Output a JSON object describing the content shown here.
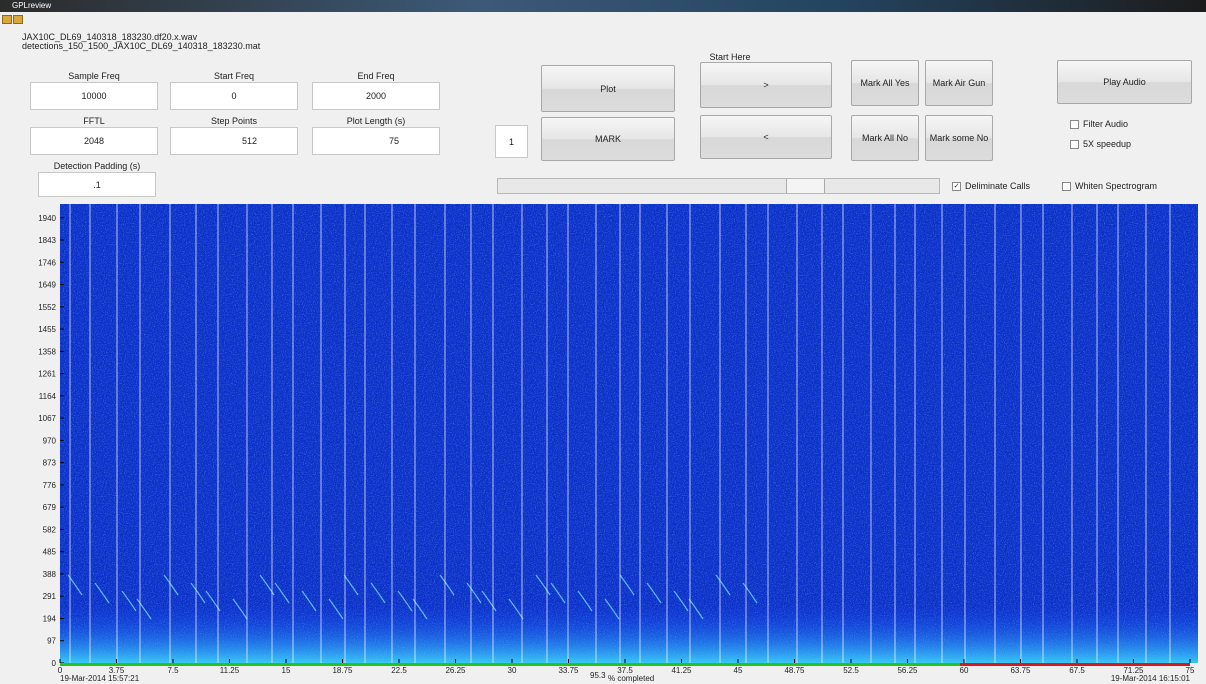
{
  "window": {
    "title": "GPLreview"
  },
  "files": [
    "JAX10C_DL69_140318_183230.df20.x.wav",
    "detections_150_1500_JAX10C_DL69_140318_183230.mat"
  ],
  "fields": [
    {
      "label": "Sample Freq",
      "value": "10000"
    },
    {
      "label": "Start Freq",
      "value": "0"
    },
    {
      "label": "End Freq",
      "value": "2000"
    },
    {
      "label": "FFTL",
      "value": "2048"
    },
    {
      "label": "Step Points",
      "value": "512"
    },
    {
      "label": "Plot Length (s)",
      "value": "75"
    },
    {
      "label": "Detection Padding (s)",
      "value": ".1"
    }
  ],
  "start_here": "Start Here",
  "index": "1",
  "buttons": {
    "plot": "Plot",
    "mark": "MARK",
    "next": ">",
    "prev": "<",
    "mark_all_yes": "Mark All Yes",
    "mark_air_gun": "Mark Air Gun",
    "mark_all_no": "Mark All No",
    "mark_some_no": "Mark some No",
    "play_audio": "Play Audio"
  },
  "checkboxes": [
    {
      "label": "Filter Audio",
      "checked": false
    },
    {
      "label": "5X speedup",
      "checked": false
    },
    {
      "label": "Deliminate Calls",
      "checked": true
    },
    {
      "label": "Whiten Spectrogram",
      "checked": false
    }
  ],
  "spectrogram": {
    "ylim": [
      0,
      2000
    ],
    "yticks": [
      0,
      97,
      194,
      291,
      388,
      485,
      582,
      679,
      776,
      873,
      970,
      1067,
      1164,
      1261,
      1358,
      1455,
      1552,
      1649,
      1746,
      1843,
      1940
    ],
    "xlim": [
      0,
      75
    ],
    "xticks": [
      0,
      3.75,
      7.5,
      11.25,
      15,
      18.75,
      22.5,
      26.25,
      30,
      33.75,
      37.5,
      41.25,
      45,
      48.75,
      52.5,
      56.25,
      60,
      63.75,
      67.5,
      71.25,
      75
    ],
    "start_time": "19-Mar-2014 15:57:21",
    "end_time": "19-Mar-2014 16:15:01",
    "completed": 95.3,
    "completed_label": "% completed"
  }
}
